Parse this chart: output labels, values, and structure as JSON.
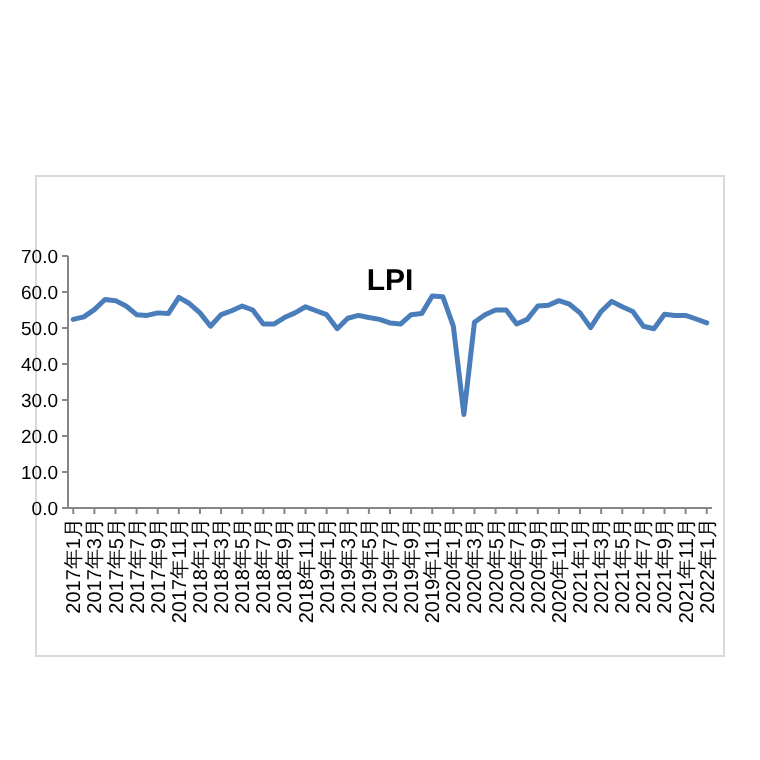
{
  "chart_data": {
    "type": "line",
    "title": "LPI",
    "categories": [
      "2017年1月",
      null,
      "2017年3月",
      null,
      "2017年5月",
      null,
      "2017年7月",
      null,
      "2017年9月",
      null,
      "2017年11月",
      null,
      "2018年1月",
      null,
      "2018年3月",
      null,
      "2018年5月",
      null,
      "2018年7月",
      null,
      "2018年9月",
      null,
      "2018年11月",
      null,
      "2019年1月",
      null,
      "2019年3月",
      null,
      "2019年5月",
      null,
      "2019年7月",
      null,
      "2019年9月",
      null,
      "2019年11月",
      null,
      "2020年1月",
      null,
      "2020年3月",
      null,
      "2020年5月",
      null,
      "2020年7月",
      null,
      "2020年9月",
      null,
      "2020年11月",
      null,
      "2021年1月",
      null,
      "2021年3月",
      null,
      "2021年5月",
      null,
      "2021年7月",
      null,
      "2021年9月",
      null,
      "2021年11月",
      null,
      "2022年1月"
    ],
    "series": [
      {
        "color": "#4a7ebb",
        "values": [
          52.4,
          53.1,
          55.1,
          57.9,
          57.6,
          56.1,
          53.7,
          53.5,
          54.2,
          54.0,
          58.5,
          56.8,
          54.2,
          50.5,
          53.7,
          54.8,
          56.1,
          55.0,
          51.1,
          51.1,
          52.9,
          54.2,
          55.9,
          54.8,
          53.7,
          49.8,
          52.7,
          53.5,
          52.9,
          52.4,
          51.4,
          51.1,
          53.7,
          54.0,
          58.9,
          58.7,
          50.5,
          26.0,
          51.6,
          53.7,
          55.0,
          55.0,
          51.1,
          52.4,
          56.1,
          56.3,
          57.6,
          56.6,
          54.2,
          50.1,
          54.6,
          57.4,
          55.9,
          54.6,
          50.5,
          49.8,
          53.8,
          53.5,
          53.5,
          52.5,
          51.4
        ]
      }
    ],
    "ylim": [
      0,
      70
    ],
    "yticks": [
      {
        "value": 0,
        "label": "0.0"
      },
      {
        "value": 10,
        "label": "10.0"
      },
      {
        "value": 20,
        "label": "20.0"
      },
      {
        "value": 30,
        "label": "30.0"
      },
      {
        "value": 40,
        "label": "40.0"
      },
      {
        "value": 50,
        "label": "50.0"
      },
      {
        "value": 60,
        "label": "60.0"
      },
      {
        "value": 70,
        "label": "70.0"
      }
    ],
    "marker": "none",
    "line_style": "solid"
  }
}
